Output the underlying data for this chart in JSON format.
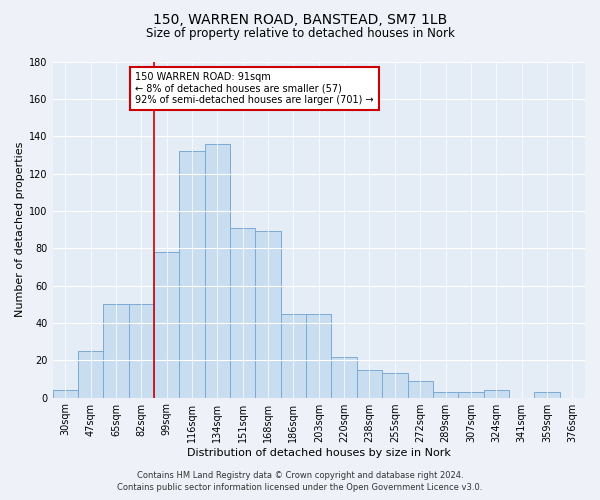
{
  "title": "150, WARREN ROAD, BANSTEAD, SM7 1LB",
  "subtitle": "Size of property relative to detached houses in Nork",
  "xlabel": "Distribution of detached houses by size in Nork",
  "ylabel": "Number of detached properties",
  "categories": [
    "30sqm",
    "47sqm",
    "65sqm",
    "82sqm",
    "99sqm",
    "116sqm",
    "134sqm",
    "151sqm",
    "168sqm",
    "186sqm",
    "203sqm",
    "220sqm",
    "238sqm",
    "255sqm",
    "272sqm",
    "289sqm",
    "307sqm",
    "324sqm",
    "341sqm",
    "359sqm",
    "376sqm"
  ],
  "values": [
    4,
    25,
    50,
    50,
    78,
    132,
    136,
    91,
    89,
    45,
    45,
    22,
    15,
    13,
    9,
    3,
    3,
    4,
    0,
    3,
    0
  ],
  "bar_color": "#c9ddf0",
  "bar_edge_color": "#7baad4",
  "vline_color": "#cc0000",
  "annotation_box_text": "150 WARREN ROAD: 91sqm\n← 8% of detached houses are smaller (57)\n92% of semi-detached houses are larger (701) →",
  "ylim": [
    0,
    180
  ],
  "yticks": [
    0,
    20,
    40,
    60,
    80,
    100,
    120,
    140,
    160,
    180
  ],
  "footer_line1": "Contains HM Land Registry data © Crown copyright and database right 2024.",
  "footer_line2": "Contains public sector information licensed under the Open Government Licence v3.0.",
  "bg_color": "#eef2f8",
  "plot_bg_color": "#e4ecf6",
  "title_fontsize": 10,
  "subtitle_fontsize": 8.5,
  "xlabel_fontsize": 8,
  "ylabel_fontsize": 8,
  "tick_fontsize": 7,
  "footer_fontsize": 6
}
